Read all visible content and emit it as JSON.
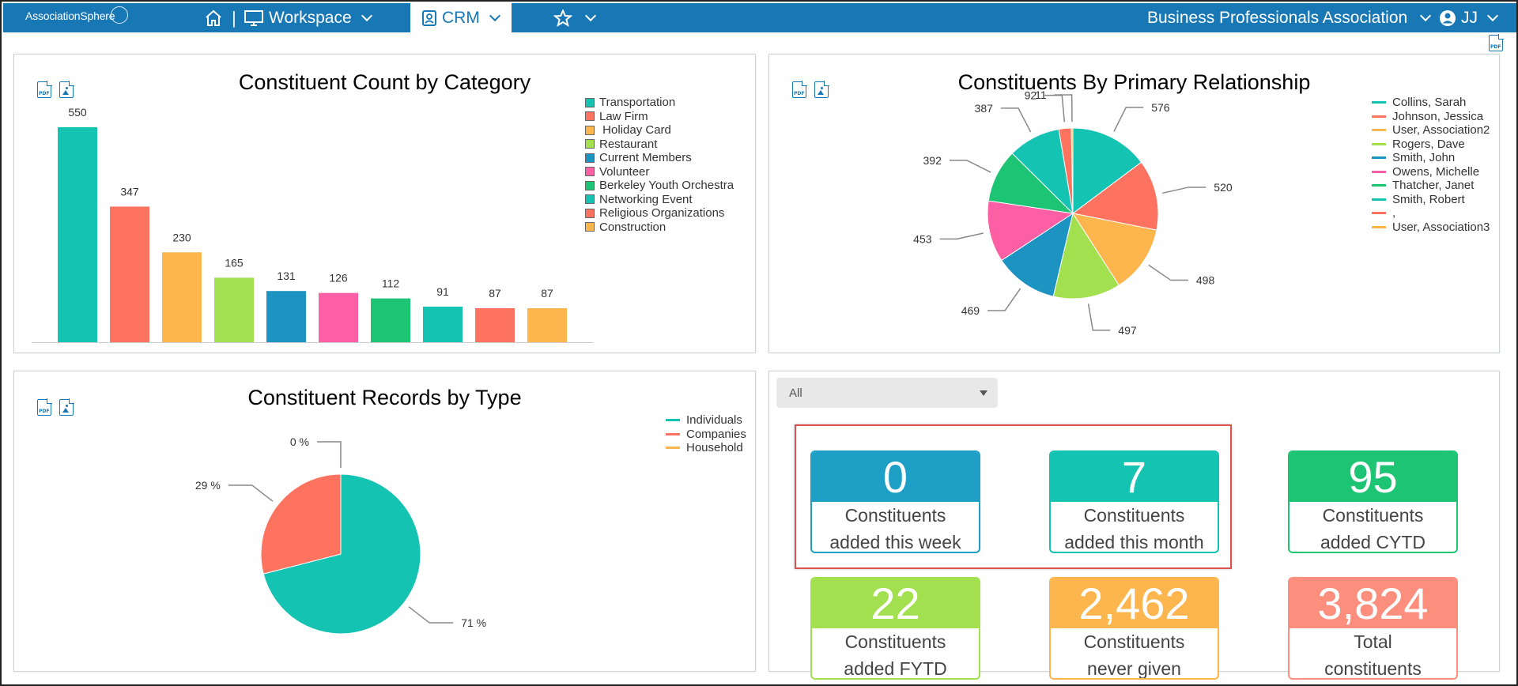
{
  "nav": {
    "logo": "AssociationSphere",
    "separator": "|",
    "workspace": "Workspace",
    "crm": "CRM",
    "organization": "Business Professionals Association",
    "user": "JJ"
  },
  "bar_chart": {
    "title": "Constituent Count by Category",
    "chart_data": {
      "type": "bar",
      "categories": [
        "Transportation",
        "Law Firm",
        " Holiday Card",
        "Restaurant",
        "Current Members",
        "Volunteer",
        "Berkeley Youth Orchestra",
        "Networking Event",
        "Religious Organizations",
        "Construction"
      ],
      "values": [
        550,
        347,
        230,
        165,
        131,
        126,
        112,
        91,
        87,
        87
      ],
      "colors": [
        "#14c3b2",
        "#fd735f",
        "#fdb54d",
        "#a3e04f",
        "#1d93c2",
        "#fd5fa4",
        "#1cc474",
        "#14c3b2",
        "#fd735f",
        "#fdb54d"
      ],
      "ylim": [
        0,
        550
      ]
    }
  },
  "relationship_chart": {
    "title": "Constituents By Primary Relationship",
    "chart_data": {
      "type": "pie",
      "labels": [
        "Collins, Sarah",
        "Johnson, Jessica",
        "User, Association2",
        "Rogers, Dave",
        "Smith, John",
        "Owens, Michelle",
        "Thatcher, Janet",
        "Smith, Robert",
        ",",
        "User, Association3"
      ],
      "values": [
        576,
        520,
        498,
        497,
        469,
        453,
        392,
        387,
        92,
        11
      ],
      "colors": [
        "#14c3b2",
        "#fd735f",
        "#fdb54d",
        "#a3e04f",
        "#1d93c2",
        "#fd5fa4",
        "#1cc474",
        "#14c3b2",
        "#fd735f",
        "#fdb54d"
      ]
    }
  },
  "records_chart": {
    "title": "Constituent Records by Type",
    "chart_data": {
      "type": "pie",
      "labels": [
        "Individuals",
        "Companies",
        "Household"
      ],
      "values": [
        71,
        29,
        0
      ],
      "value_labels": [
        "71 %",
        "29 %",
        "0 %"
      ],
      "colors": [
        "#14c3b2",
        "#fd735f",
        "#fdb54d"
      ]
    }
  },
  "filter": {
    "selected": "All"
  },
  "tiles": [
    {
      "value": "0",
      "line1": "Constituents",
      "line2": "added this week",
      "color": "#1d9fc6"
    },
    {
      "value": "7",
      "line1": "Constituents",
      "line2": "added this month",
      "color": "#14c3b2"
    },
    {
      "value": "95",
      "line1": "Constituents",
      "line2": "added CYTD",
      "color": "#1cc474"
    },
    {
      "value": "22",
      "line1": "Constituents",
      "line2": "added FYTD",
      "color": "#a3e04f"
    },
    {
      "value": "2,462",
      "line1": "Constituents",
      "line2": "never given",
      "color": "#fdb54d"
    },
    {
      "value": "3,824",
      "line1": "Total",
      "line2": "constituents",
      "color": "#fc8e7e"
    }
  ]
}
